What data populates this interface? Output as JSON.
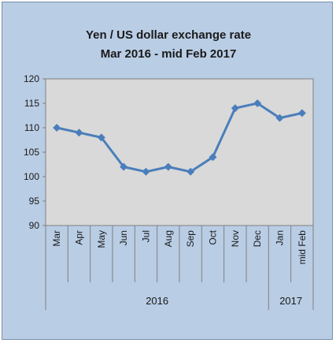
{
  "chart_data": {
    "type": "line",
    "title_lines": [
      "Yen / US dollar  exchange rate",
      "Mar 2016 - mid Feb 2017"
    ],
    "xlabel": "",
    "ylabel": "",
    "categories": [
      "Mar",
      "Apr",
      "May",
      "Jun",
      "Jul",
      "Aug",
      "Sep",
      "Oct",
      "Nov",
      "Dec",
      "Jan",
      "mid Feb"
    ],
    "groups": [
      {
        "label": "2016",
        "count": 10
      },
      {
        "label": "2017",
        "count": 2
      }
    ],
    "series": [
      {
        "values": [
          110,
          109,
          108,
          102,
          101,
          102,
          101,
          104,
          114,
          115,
          112,
          113
        ]
      }
    ],
    "ylim": [
      90,
      120
    ],
    "yticks": [
      "90",
      "95",
      "100",
      "105",
      "110",
      "115",
      "120"
    ],
    "grid": false,
    "legend": "none",
    "colors": {
      "frame_background": "#b9cde5",
      "plot_background": "#d9d9d9",
      "series_line": "#4a7ebb",
      "axis": "#808080",
      "text": "#1a1a1a"
    }
  }
}
